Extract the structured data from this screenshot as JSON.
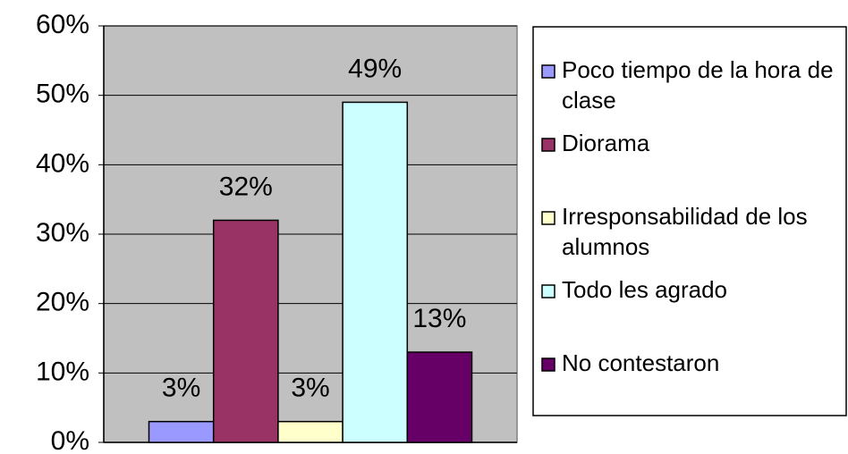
{
  "chart_data": {
    "type": "bar",
    "series": [
      {
        "name": "Poco tiempo de la hora de clase",
        "color": "#9999ff",
        "values": [
          3
        ],
        "value_labels": [
          "3%"
        ]
      },
      {
        "name": "Diorama",
        "color": "#993366",
        "values": [
          32
        ],
        "value_labels": [
          "32%"
        ]
      },
      {
        "name": "Irresponsabilidad de los alumnos",
        "color": "#ffffcc",
        "values": [
          3
        ],
        "value_labels": [
          "3%"
        ]
      },
      {
        "name": "Todo les agrado",
        "color": "#ccffff",
        "values": [
          49
        ],
        "value_labels": [
          "49%"
        ]
      },
      {
        "name": "No contestaron",
        "color": "#660066",
        "values": [
          13
        ],
        "value_labels": [
          "13%"
        ]
      }
    ],
    "ylim": [
      0,
      60
    ],
    "yticks": [
      {
        "value": 0,
        "label": "0%"
      },
      {
        "value": 10,
        "label": "10%"
      },
      {
        "value": 20,
        "label": "20%"
      },
      {
        "value": 30,
        "label": "30%"
      },
      {
        "value": 40,
        "label": "40%"
      },
      {
        "value": 50,
        "label": "50%"
      },
      {
        "value": 60,
        "label": "60%"
      }
    ],
    "grid": true,
    "legend": "right"
  }
}
